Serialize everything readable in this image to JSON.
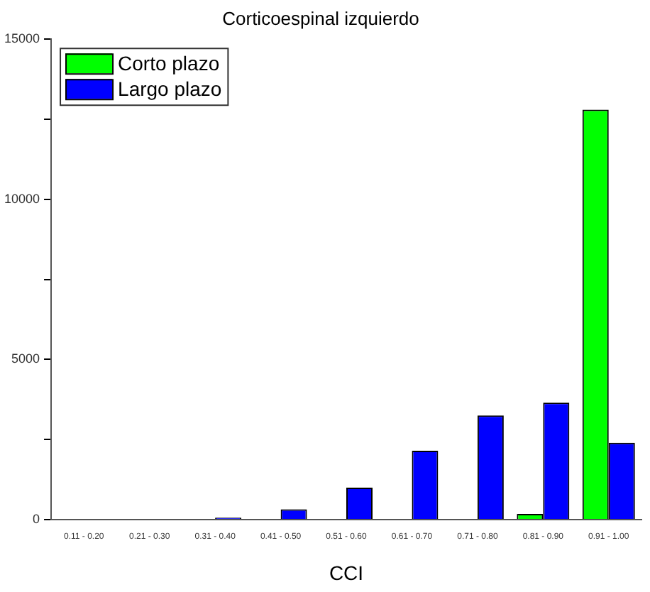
{
  "chart_data": {
    "type": "bar",
    "title": "Corticoespinal izquierdo",
    "xlabel": "CCI",
    "categories": [
      "0.11 - 0.20",
      "0.21 - 0.30",
      "0.31 - 0.40",
      "0.41 - 0.50",
      "0.51 - 0.60",
      "0.61 - 0.70",
      "0.71 - 0.80",
      "0.81 - 0.90",
      "0.91 - 1.00"
    ],
    "series": [
      {
        "name": "Corto plazo",
        "color": "#00ff00",
        "values": [
          0,
          0,
          0,
          0,
          0,
          0,
          0,
          180,
          12800
        ]
      },
      {
        "name": "Largo plazo",
        "color": "#0000ff",
        "values": [
          0,
          0,
          60,
          320,
          1000,
          2150,
          3250,
          3650,
          2400
        ]
      }
    ],
    "ylim": [
      0,
      15000
    ],
    "yticks": [
      0,
      {
        "value": 2500,
        "label": null
      },
      5000,
      {
        "value": 7500,
        "label": null
      },
      10000,
      {
        "value": 12500,
        "label": null
      },
      15000
    ],
    "grid": false,
    "legend": "top left"
  }
}
